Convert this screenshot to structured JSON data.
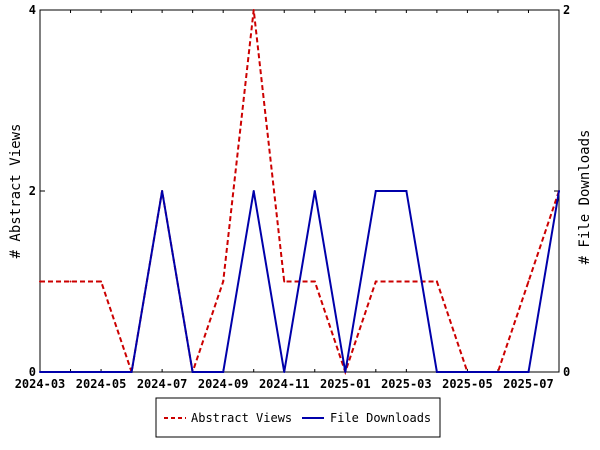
{
  "chart_data": {
    "type": "line",
    "x": [
      "2024-03",
      "2024-04",
      "2024-05",
      "2024-06",
      "2024-07",
      "2024-08",
      "2024-09",
      "2024-10",
      "2024-11",
      "2024-12",
      "2025-01",
      "2025-02",
      "2025-03",
      "2025-04",
      "2025-05",
      "2025-06",
      "2025-07",
      "2025-08"
    ],
    "x_tick_labels": [
      "2024-03",
      "2024-05",
      "2024-07",
      "2024-09",
      "2024-11",
      "2025-01",
      "2025-03",
      "2025-05",
      "2025-07"
    ],
    "series": [
      {
        "name": "Abstract Views",
        "axis": "left",
        "color": "#cc0000",
        "style": "dashed",
        "values": [
          1,
          1,
          1,
          0,
          2,
          0,
          1,
          4,
          1,
          1,
          0,
          1,
          1,
          1,
          0,
          0,
          1,
          2
        ]
      },
      {
        "name": "File Downloads",
        "axis": "right",
        "color": "#0000aa",
        "style": "solid",
        "values": [
          0,
          0,
          0,
          0,
          1,
          0,
          0,
          1,
          0,
          1,
          0,
          1,
          1,
          0,
          0,
          0,
          0,
          1
        ]
      }
    ],
    "ylabel_left": "# Abstract Views",
    "ylabel_right": "# File Downloads",
    "ylim_left": [
      0,
      4
    ],
    "ylim_right": [
      0,
      2
    ],
    "yticks_left": [
      "0",
      "2",
      "4"
    ],
    "yticks_right": [
      "0",
      "1",
      "2"
    ],
    "yticks_right_labeled": [
      "0",
      "2"
    ],
    "grid": false,
    "legend_position": "bottom"
  }
}
